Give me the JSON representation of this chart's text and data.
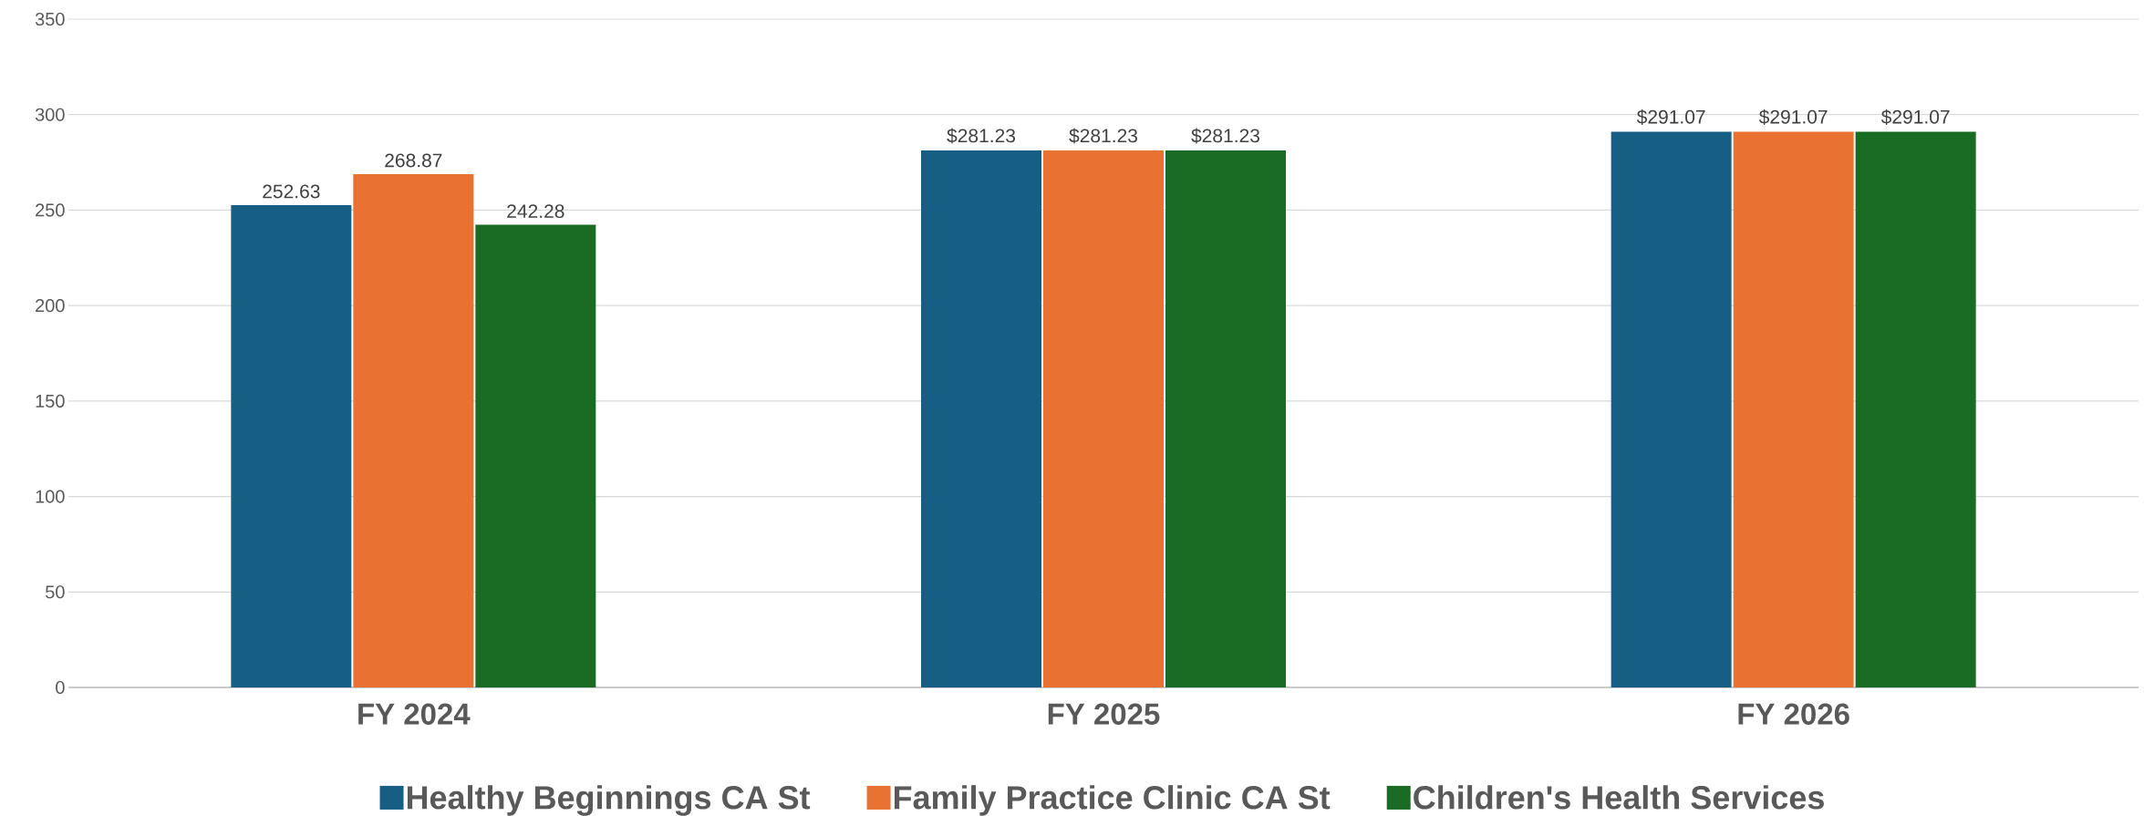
{
  "chart_data": {
    "type": "bar",
    "categories": [
      "FY 2024",
      "FY 2025",
      "FY 2026"
    ],
    "series": [
      {
        "name": "Healthy Beginnings CA St",
        "color": "#175e84",
        "values": [
          252.63,
          281.23,
          291.07
        ],
        "value_labels": [
          "252.63",
          "$281.23",
          "$291.07"
        ]
      },
      {
        "name": "Family Practice Clinic CA St",
        "color": "#e97132",
        "values": [
          268.87,
          281.23,
          291.07
        ],
        "value_labels": [
          "268.87",
          "$281.23",
          "$291.07"
        ]
      },
      {
        "name": "Children's Health Services",
        "color": "#1a6b24",
        "values": [
          242.28,
          281.23,
          291.07
        ],
        "value_labels": [
          "242.28",
          "$281.23",
          "$291.07"
        ]
      }
    ],
    "ylim": [
      0,
      350
    ],
    "yticks": [
      0,
      50,
      100,
      150,
      200,
      250,
      300,
      350
    ],
    "grid": "y",
    "legend": "bottom"
  }
}
